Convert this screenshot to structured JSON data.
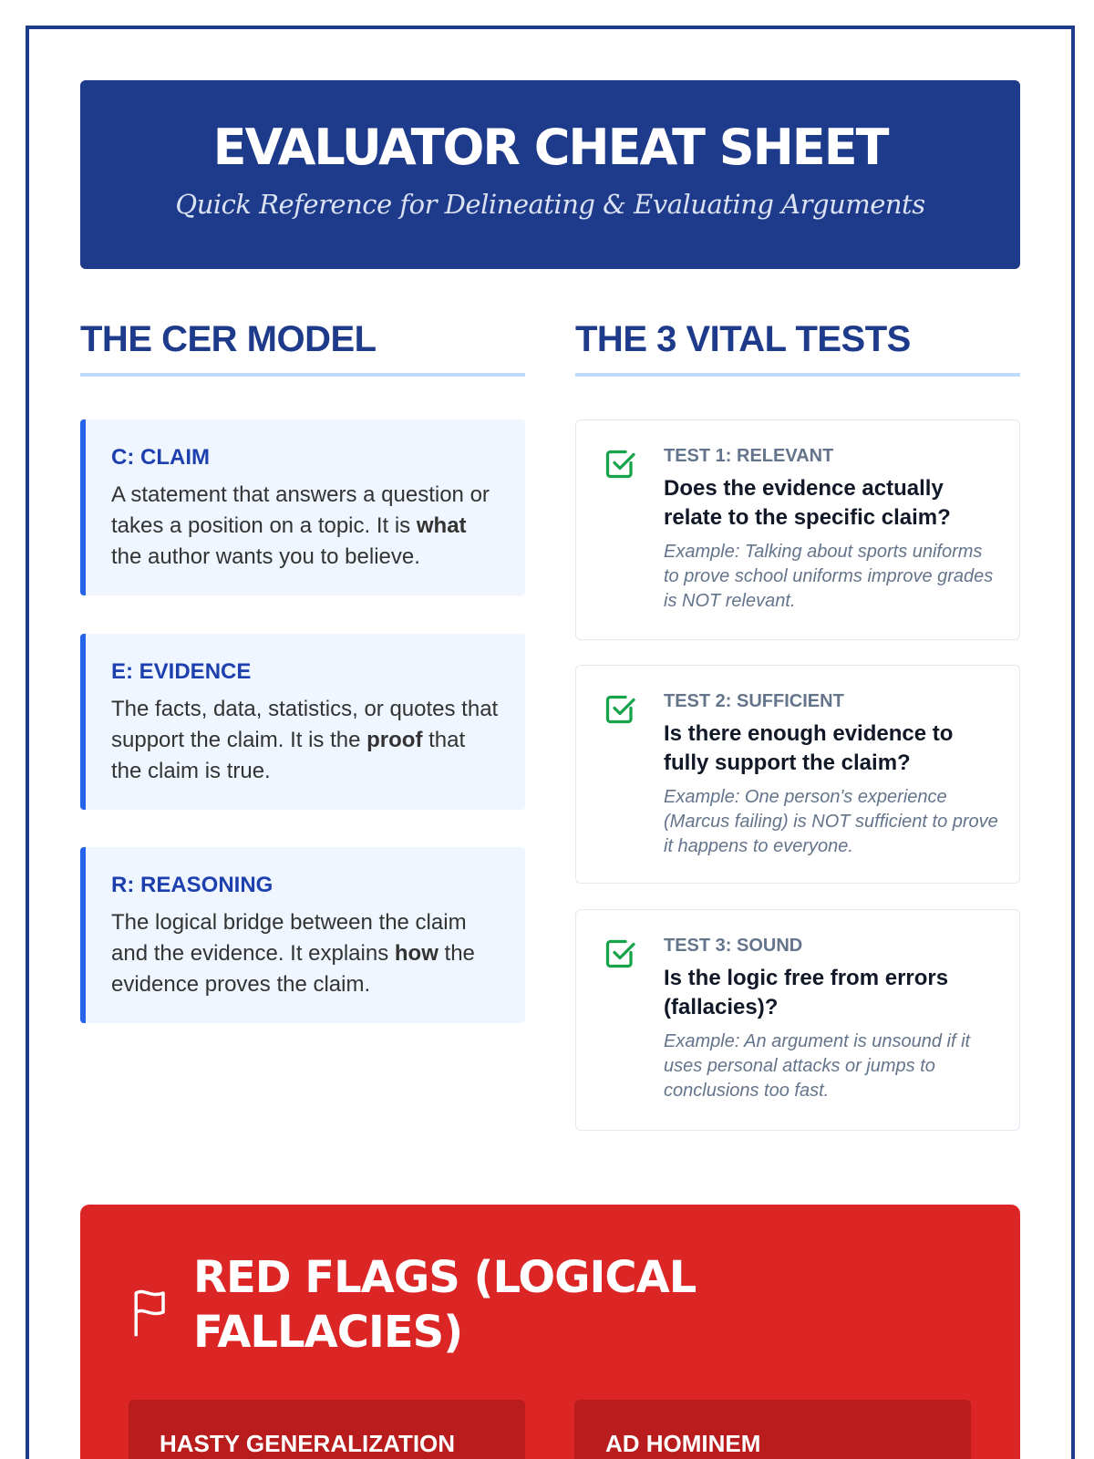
{
  "header": {
    "title": "EVALUATOR CHEAT SHEET",
    "subtitle": "Quick Reference for Delineating & Evaluating Arguments"
  },
  "cer": {
    "title": "THE CER MODEL",
    "items": [
      {
        "label": "C: CLAIM",
        "before": "A statement that answers a question or takes a position on a topic. It is ",
        "bold": "what",
        "after": " the author wants you to believe."
      },
      {
        "label": "E: EVIDENCE",
        "before": "The facts, data, statistics, or quotes that support the claim. It is the ",
        "bold": "proof",
        "after": " that the claim is true."
      },
      {
        "label": "R: REASONING",
        "before": "The logical bridge between the claim and the evidence. It explains ",
        "bold": "how",
        "after": " the evidence proves the claim."
      }
    ]
  },
  "tests": {
    "title": "THE 3 VITAL TESTS",
    "icon": "check-square-icon",
    "items": [
      {
        "label": "TEST 1: RELEVANT",
        "question": "Does the evidence actually relate to the specific claim?",
        "example": "Example: Talking about sports uniforms to prove school uniforms improve grades is NOT relevant."
      },
      {
        "label": "TEST 2: SUFFICIENT",
        "question": "Is there enough evidence to fully support the claim?",
        "example": "Example: One person's experience (Marcus failing) is NOT sufficient to prove it happens to everyone."
      },
      {
        "label": "TEST 3: SOUND",
        "question": "Is the logic free from errors (fallacies)?",
        "example": "Example: An argument is unsound if it uses personal attacks or jumps to conclusions too fast."
      }
    ]
  },
  "red_flags": {
    "title": "RED FLAGS (LOGICAL FALLACIES)",
    "icon": "flag-icon",
    "items": [
      {
        "label": "HASTY GENERALIZATION"
      },
      {
        "label": "AD HOMINEM"
      }
    ]
  },
  "colors": {
    "primary": "#1e3a8a",
    "accent": "#2563eb",
    "success": "#16a34a",
    "danger": "#dc2626"
  }
}
